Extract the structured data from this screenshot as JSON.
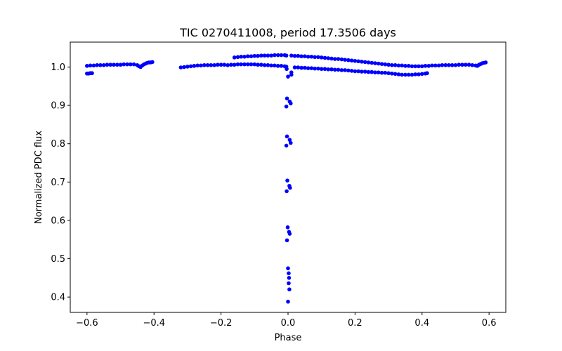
{
  "chart_data": {
    "type": "scatter",
    "title": "TIC 0270411008, period 17.3506 days",
    "xlabel": "Phase",
    "ylabel": "Normalized PDC flux",
    "xlim": [
      -0.65,
      0.65
    ],
    "ylim": [
      0.36,
      1.065
    ],
    "x_ticks": [
      -0.6,
      -0.4,
      -0.2,
      0.0,
      0.2,
      0.4,
      0.6
    ],
    "x_tick_labels": [
      "−0.6",
      "−0.4",
      "−0.2",
      "0.0",
      "0.2",
      "0.4",
      "0.6"
    ],
    "y_ticks": [
      0.4,
      0.5,
      0.6,
      0.7,
      0.8,
      0.9,
      1.0
    ],
    "y_tick_labels": [
      "0.4",
      "0.5",
      "0.6",
      "0.7",
      "0.8",
      "0.9",
      "1.0"
    ],
    "grid": false,
    "marker_color": "#0000ff",
    "series": [
      {
        "name": "Normalized PDC flux",
        "points": [
          [
            -0.6,
            1.003
          ],
          [
            -0.59,
            1.004
          ],
          [
            -0.58,
            1.004
          ],
          [
            -0.57,
            1.005
          ],
          [
            -0.56,
            1.005
          ],
          [
            -0.55,
            1.005
          ],
          [
            -0.54,
            1.006
          ],
          [
            -0.53,
            1.006
          ],
          [
            -0.52,
            1.006
          ],
          [
            -0.51,
            1.006
          ],
          [
            -0.5,
            1.006
          ],
          [
            -0.49,
            1.007
          ],
          [
            -0.48,
            1.007
          ],
          [
            -0.47,
            1.007
          ],
          [
            -0.46,
            1.007
          ],
          [
            -0.45,
            1.005
          ],
          [
            -0.445,
            1.002
          ],
          [
            -0.44,
            1.0
          ],
          [
            -0.435,
            1.004
          ],
          [
            -0.43,
            1.007
          ],
          [
            -0.425,
            1.009
          ],
          [
            -0.42,
            1.011
          ],
          [
            -0.415,
            1.012
          ],
          [
            -0.41,
            1.012
          ],
          [
            -0.405,
            1.013
          ],
          [
            -0.6,
            0.983
          ],
          [
            -0.595,
            0.983
          ],
          [
            -0.59,
            0.984
          ],
          [
            -0.585,
            0.984
          ],
          [
            -0.32,
            0.999
          ],
          [
            -0.31,
            1.0
          ],
          [
            -0.3,
            1.001
          ],
          [
            -0.29,
            1.002
          ],
          [
            -0.28,
            1.003
          ],
          [
            -0.27,
            1.004
          ],
          [
            -0.26,
            1.004
          ],
          [
            -0.25,
            1.005
          ],
          [
            -0.24,
            1.005
          ],
          [
            -0.23,
            1.005
          ],
          [
            -0.22,
            1.005
          ],
          [
            -0.21,
            1.006
          ],
          [
            -0.2,
            1.006
          ],
          [
            -0.19,
            1.006
          ],
          [
            -0.18,
            1.005
          ],
          [
            -0.17,
            1.006
          ],
          [
            -0.16,
            1.006
          ],
          [
            -0.15,
            1.007
          ],
          [
            -0.14,
            1.007
          ],
          [
            -0.13,
            1.007
          ],
          [
            -0.12,
            1.007
          ],
          [
            -0.11,
            1.007
          ],
          [
            -0.1,
            1.007
          ],
          [
            -0.09,
            1.006
          ],
          [
            -0.08,
            1.006
          ],
          [
            -0.07,
            1.005
          ],
          [
            -0.06,
            1.005
          ],
          [
            -0.05,
            1.004
          ],
          [
            -0.04,
            1.004
          ],
          [
            -0.03,
            1.003
          ],
          [
            -0.02,
            1.003
          ],
          [
            -0.01,
            1.002
          ],
          [
            -0.16,
            1.025
          ],
          [
            -0.15,
            1.026
          ],
          [
            -0.14,
            1.027
          ],
          [
            -0.13,
            1.027
          ],
          [
            -0.12,
            1.028
          ],
          [
            -0.11,
            1.028
          ],
          [
            -0.1,
            1.029
          ],
          [
            -0.09,
            1.029
          ],
          [
            -0.08,
            1.03
          ],
          [
            -0.07,
            1.03
          ],
          [
            -0.06,
            1.03
          ],
          [
            -0.05,
            1.03
          ],
          [
            -0.04,
            1.031
          ],
          [
            -0.03,
            1.031
          ],
          [
            -0.02,
            1.031
          ],
          [
            -0.01,
            1.031
          ],
          [
            -0.005,
            1.03
          ],
          [
            0.01,
            1.03
          ],
          [
            0.02,
            1.029
          ],
          [
            0.03,
            1.029
          ],
          [
            0.04,
            1.028
          ],
          [
            0.05,
            1.028
          ],
          [
            0.06,
            1.027
          ],
          [
            0.07,
            1.027
          ],
          [
            0.08,
            1.026
          ],
          [
            0.09,
            1.026
          ],
          [
            0.1,
            1.025
          ],
          [
            0.11,
            1.024
          ],
          [
            0.12,
            1.023
          ],
          [
            0.13,
            1.022
          ],
          [
            0.14,
            1.021
          ],
          [
            0.15,
            1.021
          ],
          [
            0.16,
            1.02
          ],
          [
            0.17,
            1.019
          ],
          [
            0.18,
            1.018
          ],
          [
            0.19,
            1.017
          ],
          [
            0.2,
            1.016
          ],
          [
            0.21,
            1.015
          ],
          [
            0.22,
            1.014
          ],
          [
            0.23,
            1.013
          ],
          [
            0.24,
            1.012
          ],
          [
            0.25,
            1.011
          ],
          [
            0.26,
            1.01
          ],
          [
            0.27,
            1.009
          ],
          [
            0.28,
            1.008
          ],
          [
            0.29,
            1.007
          ],
          [
            0.3,
            1.006
          ],
          [
            0.31,
            1.005
          ],
          [
            0.32,
            1.005
          ],
          [
            0.33,
            1.004
          ],
          [
            0.34,
            1.004
          ],
          [
            0.35,
            1.003
          ],
          [
            0.36,
            1.003
          ],
          [
            0.37,
            1.002
          ],
          [
            0.38,
            1.002
          ],
          [
            0.39,
            1.002
          ],
          [
            0.4,
            1.002
          ],
          [
            0.41,
            1.003
          ],
          [
            0.42,
            1.003
          ],
          [
            0.43,
            1.004
          ],
          [
            0.44,
            1.004
          ],
          [
            0.45,
            1.004
          ],
          [
            0.46,
            1.005
          ],
          [
            0.47,
            1.005
          ],
          [
            0.48,
            1.005
          ],
          [
            0.49,
            1.005
          ],
          [
            0.5,
            1.005
          ],
          [
            0.51,
            1.006
          ],
          [
            0.52,
            1.006
          ],
          [
            0.53,
            1.006
          ],
          [
            0.54,
            1.006
          ],
          [
            0.55,
            1.005
          ],
          [
            0.56,
            1.004
          ],
          [
            0.565,
            1.003
          ],
          [
            0.57,
            1.006
          ],
          [
            0.575,
            1.008
          ],
          [
            0.58,
            1.01
          ],
          [
            0.585,
            1.011
          ],
          [
            0.59,
            1.012
          ],
          [
            0.01,
            0.986
          ],
          [
            0.02,
            0.999
          ],
          [
            0.03,
            0.999
          ],
          [
            0.04,
            0.998
          ],
          [
            0.05,
            0.998
          ],
          [
            0.06,
            0.997
          ],
          [
            0.07,
            0.997
          ],
          [
            0.08,
            0.996
          ],
          [
            0.09,
            0.996
          ],
          [
            0.1,
            0.995
          ],
          [
            0.11,
            0.995
          ],
          [
            0.12,
            0.994
          ],
          [
            0.13,
            0.994
          ],
          [
            0.14,
            0.993
          ],
          [
            0.15,
            0.993
          ],
          [
            0.16,
            0.992
          ],
          [
            0.17,
            0.992
          ],
          [
            0.18,
            0.991
          ],
          [
            0.19,
            0.99
          ],
          [
            0.2,
            0.989
          ],
          [
            0.21,
            0.989
          ],
          [
            0.22,
            0.988
          ],
          [
            0.23,
            0.988
          ],
          [
            0.24,
            0.987
          ],
          [
            0.25,
            0.987
          ],
          [
            0.26,
            0.986
          ],
          [
            0.27,
            0.986
          ],
          [
            0.28,
            0.985
          ],
          [
            0.29,
            0.985
          ],
          [
            0.3,
            0.984
          ],
          [
            0.31,
            0.983
          ],
          [
            0.32,
            0.982
          ],
          [
            0.33,
            0.981
          ],
          [
            0.34,
            0.98
          ],
          [
            0.35,
            0.98
          ],
          [
            0.36,
            0.98
          ],
          [
            0.37,
            0.98
          ],
          [
            0.38,
            0.981
          ],
          [
            0.39,
            0.981
          ],
          [
            0.4,
            0.982
          ],
          [
            0.41,
            0.983
          ],
          [
            0.415,
            0.984
          ],
          [
            -0.005,
            1.001
          ],
          [
            -0.004,
            0.995
          ],
          [
            0.0,
            0.975
          ],
          [
            0.01,
            0.98
          ],
          [
            -0.003,
            0.918
          ],
          [
            -0.005,
            0.897
          ],
          [
            0.005,
            0.91
          ],
          [
            0.008,
            0.905
          ],
          [
            -0.003,
            0.819
          ],
          [
            -0.005,
            0.795
          ],
          [
            0.005,
            0.81
          ],
          [
            0.008,
            0.802
          ],
          [
            -0.002,
            0.704
          ],
          [
            -0.004,
            0.676
          ],
          [
            0.004,
            0.69
          ],
          [
            0.006,
            0.685
          ],
          [
            -0.001,
            0.582
          ],
          [
            -0.003,
            0.548
          ],
          [
            0.003,
            0.57
          ],
          [
            0.005,
            0.565
          ],
          [
            0.0,
            0.475
          ],
          [
            0.002,
            0.462
          ],
          [
            0.003,
            0.45
          ],
          [
            0.002,
            0.436
          ],
          [
            0.004,
            0.42
          ],
          [
            0.0,
            0.388
          ]
        ]
      }
    ]
  }
}
